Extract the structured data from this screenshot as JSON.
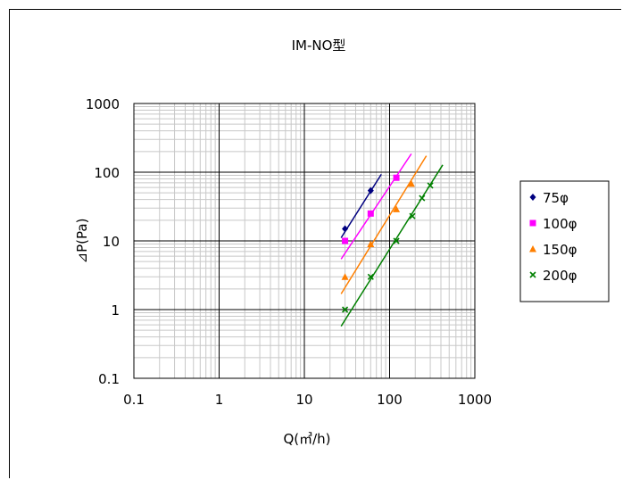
{
  "chart_data": {
    "type": "scatter",
    "title": "IM-NO型",
    "xlabel": "Q(㎥/h)",
    "ylabel": "⊿P(Pa)",
    "x_scale": "log",
    "y_scale": "log",
    "xlim": [
      0.1,
      1000
    ],
    "ylim": [
      0.1,
      1000
    ],
    "x_ticks": [
      "0.1",
      "1",
      "10",
      "100",
      "1000"
    ],
    "y_ticks": [
      "0.1",
      "1",
      "10",
      "100",
      "1000"
    ],
    "grid": true,
    "legend_position": "right",
    "series": [
      {
        "name": "75φ",
        "color": "#000080",
        "marker": "diamond",
        "x": [
          30,
          60
        ],
        "y": [
          15,
          54
        ],
        "fit": {
          "x0": 27,
          "x1": 80,
          "a": 0.01736,
          "b": 1.96
        }
      },
      {
        "name": "100φ",
        "color": "#ff00ff",
        "marker": "square",
        "x": [
          30,
          60,
          120
        ],
        "y": [
          10,
          25,
          83
        ],
        "fit": {
          "x0": 27,
          "x1": 180,
          "a": 0.01183,
          "b": 1.86
        }
      },
      {
        "name": "150φ",
        "color": "#ff7f00",
        "marker": "triangle",
        "x": [
          30,
          60,
          120,
          180
        ],
        "y": [
          3,
          9,
          29,
          68
        ],
        "fit": {
          "x0": 27,
          "x1": 270,
          "a": 0.002247,
          "b": 2.01
        }
      },
      {
        "name": "200φ",
        "color": "#008000",
        "marker": "x",
        "x": [
          30,
          60,
          120,
          185,
          240,
          300
        ],
        "y": [
          1,
          3,
          10,
          23,
          42,
          64
        ],
        "fit": {
          "x0": 27,
          "x1": 420,
          "a": 0.000868,
          "b": 1.97
        }
      }
    ]
  }
}
